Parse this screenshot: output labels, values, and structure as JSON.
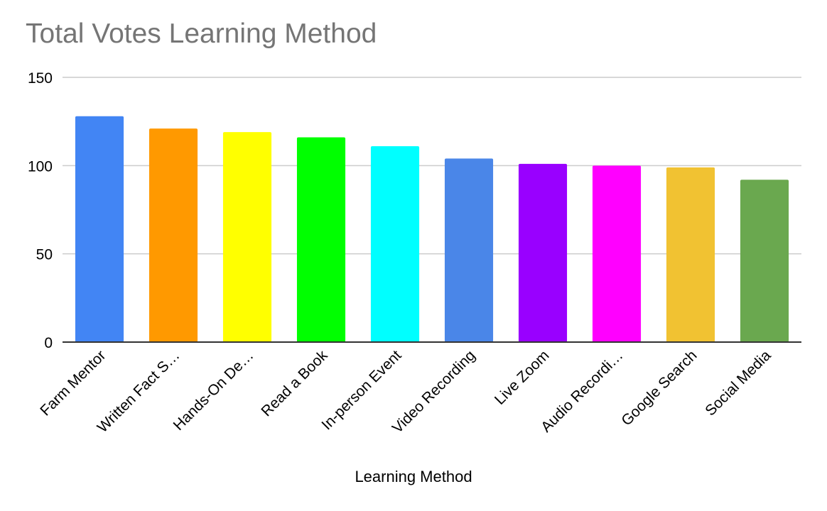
{
  "chart_data": {
    "type": "bar",
    "title": "Total Votes Learning Method",
    "xlabel": "Learning Method",
    "ylabel": "",
    "categories": [
      "Farm Mentor",
      "Written Fact S…",
      "Hands-On De…",
      "Read a Book",
      "In-person Event",
      "Video Recording",
      "Live Zoom",
      "Audio Recordi…",
      "Google Search",
      "Social Media"
    ],
    "values": [
      128,
      121,
      119,
      116,
      111,
      104,
      101,
      100,
      99,
      92
    ],
    "colors": [
      "#4285f4",
      "#ff9900",
      "#ffff00",
      "#00ff00",
      "#00ffff",
      "#4a86e8",
      "#9900ff",
      "#ff00ff",
      "#f1c232",
      "#6aa84f"
    ],
    "ylim": [
      0,
      150
    ],
    "yticks": [
      0,
      50,
      100,
      150
    ],
    "grid": true,
    "legend": "none"
  }
}
